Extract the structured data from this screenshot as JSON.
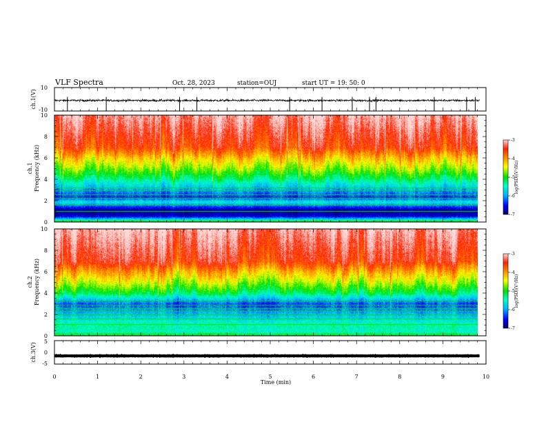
{
  "header": {
    "title": "VLF Spectra",
    "date": "Oct. 28, 2023",
    "station": "station=OUJ",
    "start_ut": "start  UT =   19: 50: 0"
  },
  "colors": {
    "colormap": [
      "#000070",
      "#0000ff",
      "#00b4ff",
      "#00ffc8",
      "#00e000",
      "#ffff00",
      "#ff8c00",
      "#ff2000",
      "#ffd8d8"
    ],
    "waveform": "#000000"
  },
  "chart_data": [
    {
      "type": "line",
      "name": "ch1-waveform",
      "ylabel": "ch.1(V)",
      "ylim": [
        -10,
        10
      ],
      "yticks": [
        10,
        -10
      ],
      "xlim": [
        0,
        10
      ],
      "baseline": -1,
      "noise_amplitude": 1.5,
      "spike_times_min": [
        0.3,
        1.2,
        2.9,
        3.3,
        5.45,
        6.2,
        6.9,
        7.3,
        7.45,
        8.8,
        9.55,
        9.75
      ]
    },
    {
      "type": "heatmap",
      "name": "ch1-spectrogram",
      "ylabel": [
        "ch.1",
        "Frequency  (kHz)"
      ],
      "xlim": [
        0,
        9.85
      ],
      "ylim": [
        0,
        10
      ],
      "yticks": [
        0,
        2,
        4,
        6,
        8,
        10
      ],
      "colorbar": {
        "label": "log(PSD)(V²/Hz)",
        "ticks": [
          -3,
          -4,
          -5,
          -6,
          -7
        ],
        "range": [
          -7,
          -3
        ]
      },
      "level_profile": [
        {
          "f": 0.0,
          "v": -4.7
        },
        {
          "f": 0.3,
          "v": -5.8
        },
        {
          "f": 0.6,
          "v": -6.7
        },
        {
          "f": 1.1,
          "v": -6.9
        },
        {
          "f": 1.5,
          "v": -6.3
        },
        {
          "f": 1.9,
          "v": -5.6
        },
        {
          "f": 2.3,
          "v": -6.4
        },
        {
          "f": 3.0,
          "v": -6.0
        },
        {
          "f": 4.0,
          "v": -5.3
        },
        {
          "f": 5.0,
          "v": -4.7
        },
        {
          "f": 6.0,
          "v": -4.2
        },
        {
          "f": 7.0,
          "v": -3.6
        },
        {
          "f": 10.0,
          "v": -3.1
        }
      ],
      "line_frequencies_khz": [
        1.05,
        1.6,
        2.25,
        2.6,
        2.95,
        3.25,
        4.5
      ]
    },
    {
      "type": "heatmap",
      "name": "ch2-spectrogram",
      "ylabel": [
        "ch.2",
        "Frequency  (kHz)"
      ],
      "xlim": [
        0,
        9.85
      ],
      "ylim": [
        0,
        10
      ],
      "yticks": [
        0,
        2,
        4,
        6,
        8,
        10
      ],
      "colorbar": {
        "label": "log(PSD)(V²/Hz)",
        "ticks": [
          -3,
          -4,
          -5,
          -6,
          -7
        ],
        "range": [
          -7,
          -3
        ]
      },
      "level_profile": [
        {
          "f": 0.0,
          "v": -4.9
        },
        {
          "f": 0.4,
          "v": -5.5
        },
        {
          "f": 1.0,
          "v": -5.4
        },
        {
          "f": 1.6,
          "v": -5.7
        },
        {
          "f": 2.3,
          "v": -6.0
        },
        {
          "f": 3.0,
          "v": -6.3
        },
        {
          "f": 4.0,
          "v": -5.2
        },
        {
          "f": 5.0,
          "v": -4.6
        },
        {
          "f": 6.0,
          "v": -4.1
        },
        {
          "f": 7.0,
          "v": -3.5
        },
        {
          "f": 10.0,
          "v": -3.1
        }
      ],
      "line_frequencies_khz": [
        1.1,
        1.6,
        2.0,
        2.3,
        2.6,
        2.9,
        3.3
      ]
    },
    {
      "type": "line",
      "name": "ch3-waveform",
      "ylabel": "ch.3(V)",
      "ylim": [
        -5,
        5
      ],
      "yticks": [
        5,
        0,
        -5
      ],
      "xlim": [
        0,
        10
      ],
      "baseline": -1.5,
      "noise_amplitude": 0.15,
      "spike_times_min": []
    }
  ],
  "x_axis": {
    "label": "Time  (min)",
    "ticks": [
      0,
      1,
      2,
      3,
      4,
      5,
      6,
      7,
      8,
      9,
      10
    ],
    "range": [
      0,
      10
    ]
  }
}
